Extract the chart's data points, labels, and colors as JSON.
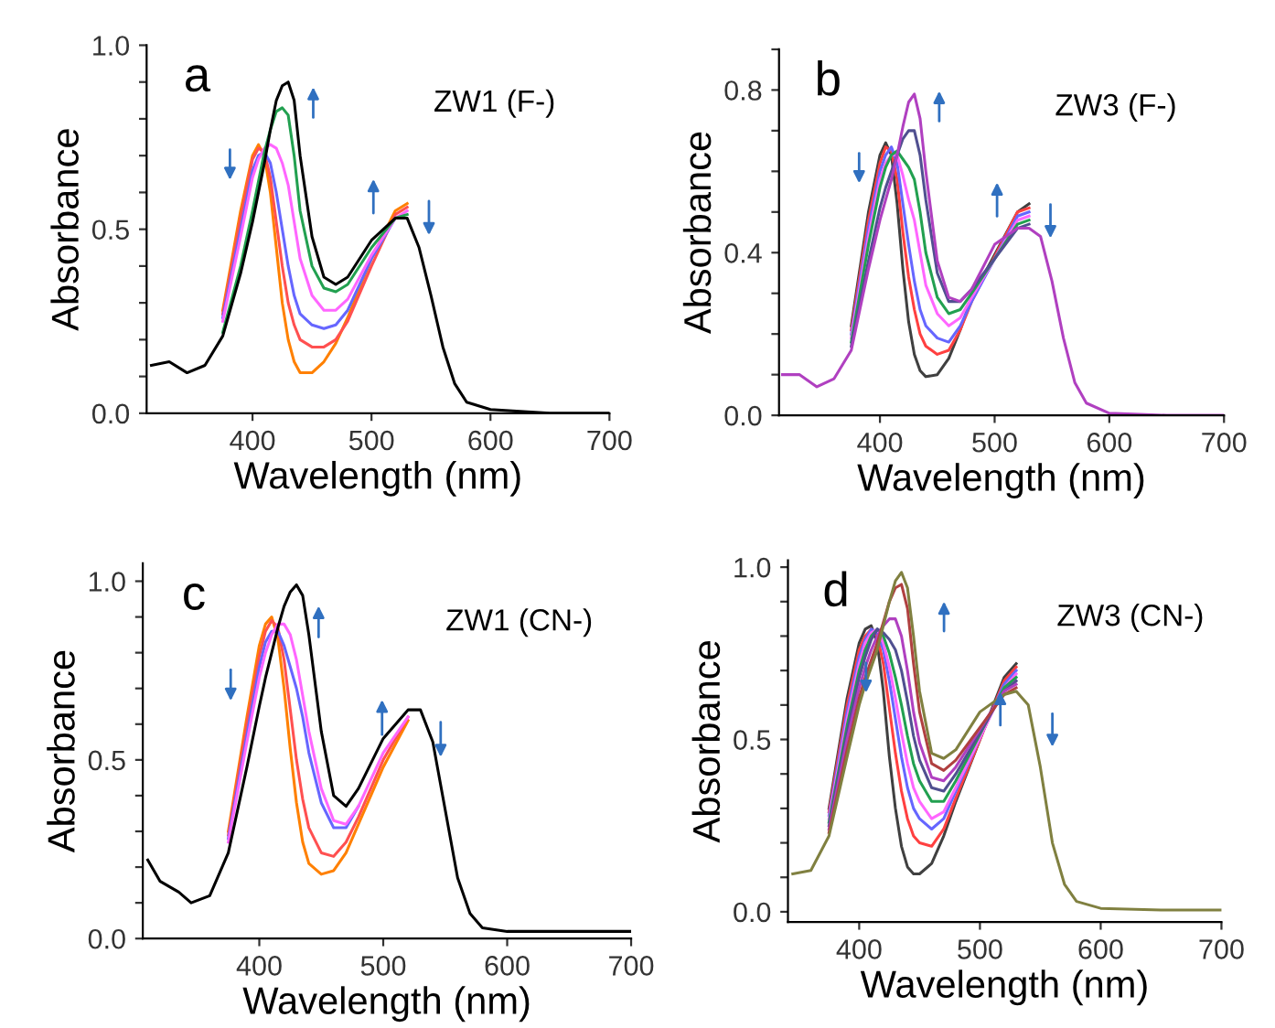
{
  "chart_data": [
    {
      "type": "line",
      "xlabel": "Wavelength (nm)",
      "ylabel": "Absorbance",
      "annotations": [
        "a",
        "ZW1 (F-)"
      ],
      "xlim": [
        311,
        700
      ],
      "ylim": [
        0,
        1.0
      ],
      "xticks": [
        400,
        500,
        600,
        700
      ],
      "yticks": [
        {
          "value": 0,
          "label": "0.0"
        },
        {
          "value": 0.1,
          "label": null
        },
        {
          "value": 0.2,
          "label": null
        },
        {
          "value": 0.3,
          "label": null
        },
        {
          "value": 0.4,
          "label": null
        },
        {
          "value": 0.5,
          "label": "0.5"
        },
        {
          "value": 0.6,
          "label": null
        },
        {
          "value": 0.7,
          "label": null
        },
        {
          "value": 0.8,
          "label": null
        },
        {
          "value": 0.9,
          "label": null
        },
        {
          "value": 1.0,
          "label": "1.0"
        }
      ],
      "x": [
        315,
        330,
        345,
        360,
        375,
        390,
        400,
        405,
        410,
        415,
        420,
        425,
        430,
        435,
        440,
        450,
        460,
        470,
        480,
        500,
        520,
        530,
        540,
        550,
        560,
        570,
        580,
        600,
        650,
        700
      ],
      "series": [
        {
          "color": "#ff8000",
          "x": [
            375,
            390,
            400,
            405,
            410,
            415,
            420,
            425,
            430,
            435,
            440,
            450,
            460,
            470,
            480,
            500,
            520,
            530
          ],
          "values": [
            0.28,
            0.55,
            0.7,
            0.73,
            0.7,
            0.6,
            0.45,
            0.3,
            0.2,
            0.14,
            0.11,
            0.11,
            0.14,
            0.19,
            0.26,
            0.42,
            0.55,
            0.57
          ]
        },
        {
          "color": "#ff5050",
          "x": [
            375,
            390,
            400,
            405,
            410,
            415,
            420,
            425,
            430,
            435,
            440,
            450,
            460,
            470,
            480,
            500,
            520,
            530
          ],
          "values": [
            0.27,
            0.53,
            0.69,
            0.72,
            0.71,
            0.64,
            0.52,
            0.4,
            0.3,
            0.24,
            0.2,
            0.18,
            0.18,
            0.2,
            0.25,
            0.4,
            0.54,
            0.56
          ]
        },
        {
          "color": "#6666ff",
          "x": [
            375,
            390,
            400,
            405,
            410,
            415,
            420,
            425,
            430,
            435,
            440,
            450,
            460,
            470,
            480,
            500,
            520
          ],
          "values": [
            0.26,
            0.5,
            0.66,
            0.7,
            0.71,
            0.68,
            0.6,
            0.5,
            0.4,
            0.32,
            0.27,
            0.24,
            0.23,
            0.24,
            0.28,
            0.42,
            0.53
          ]
        },
        {
          "color": "#ff66ff",
          "x": [
            375,
            390,
            400,
            405,
            410,
            415,
            420,
            425,
            430,
            435,
            440,
            450,
            460,
            470,
            480,
            500,
            520,
            530
          ],
          "values": [
            0.25,
            0.48,
            0.64,
            0.69,
            0.72,
            0.73,
            0.72,
            0.68,
            0.62,
            0.52,
            0.42,
            0.32,
            0.28,
            0.28,
            0.31,
            0.43,
            0.53,
            0.55
          ]
        },
        {
          "color": "#22a050",
          "x": [
            375,
            390,
            400,
            405,
            410,
            415,
            420,
            425,
            430,
            435,
            440,
            450,
            460,
            470,
            480,
            500,
            520,
            530
          ],
          "values": [
            0.22,
            0.4,
            0.55,
            0.63,
            0.71,
            0.77,
            0.82,
            0.83,
            0.81,
            0.7,
            0.55,
            0.4,
            0.34,
            0.33,
            0.35,
            0.45,
            0.53,
            0.54
          ]
        },
        {
          "color": "#000000",
          "values": [
            0.13,
            0.14,
            0.11,
            0.13,
            0.21,
            0.38,
            0.52,
            0.6,
            0.68,
            0.77,
            0.85,
            0.89,
            0.9,
            0.85,
            0.7,
            0.48,
            0.37,
            0.35,
            0.37,
            0.47,
            0.53,
            0.53,
            0.45,
            0.32,
            0.18,
            0.08,
            0.03,
            0.01,
            0,
            0
          ]
        }
      ]
    },
    {
      "type": "line",
      "xlabel": "Wavelength (nm)",
      "ylabel": "Absorbance",
      "annotations": [
        "b",
        "ZW3 (F-)"
      ],
      "xlim": [
        312,
        700
      ],
      "ylim": [
        0,
        0.9
      ],
      "xticks": [
        400,
        500,
        600,
        700
      ],
      "yticks": [
        {
          "value": 0,
          "label": "0.0"
        },
        {
          "value": 0.1,
          "label": null
        },
        {
          "value": 0.2,
          "label": null
        },
        {
          "value": 0.3,
          "label": null
        },
        {
          "value": 0.4,
          "label": "0.4"
        },
        {
          "value": 0.5,
          "label": null
        },
        {
          "value": 0.6,
          "label": null
        },
        {
          "value": 0.7,
          "label": null
        },
        {
          "value": 0.8,
          "label": "0.8"
        },
        {
          "value": 0.9,
          "label": null
        }
      ],
      "x": [
        315,
        330,
        345,
        360,
        375,
        390,
        400,
        405,
        410,
        415,
        420,
        425,
        430,
        435,
        440,
        450,
        460,
        470,
        480,
        500,
        520,
        530,
        540,
        550,
        560,
        570,
        580,
        600,
        650,
        700
      ],
      "series": [
        {
          "color": "#404040",
          "x": [
            375,
            390,
            400,
            405,
            410,
            415,
            420,
            425,
            430,
            435,
            440,
            450,
            460,
            470,
            480,
            520,
            530
          ],
          "values": [
            0.22,
            0.5,
            0.64,
            0.67,
            0.64,
            0.52,
            0.36,
            0.23,
            0.15,
            0.11,
            0.095,
            0.1,
            0.14,
            0.21,
            0.29,
            0.5,
            0.52
          ]
        },
        {
          "color": "#ff4040",
          "x": [
            375,
            390,
            400,
            405,
            410,
            415,
            420,
            425,
            430,
            435,
            440,
            450,
            460,
            470,
            480,
            520,
            530
          ],
          "values": [
            0.21,
            0.48,
            0.62,
            0.66,
            0.65,
            0.58,
            0.45,
            0.34,
            0.26,
            0.2,
            0.17,
            0.15,
            0.16,
            0.21,
            0.28,
            0.5,
            0.51
          ]
        },
        {
          "color": "#6666ff",
          "x": [
            375,
            390,
            400,
            405,
            410,
            415,
            420,
            425,
            430,
            435,
            440,
            450,
            460,
            470,
            480,
            520,
            530
          ],
          "values": [
            0.2,
            0.46,
            0.6,
            0.64,
            0.66,
            0.62,
            0.52,
            0.42,
            0.33,
            0.26,
            0.22,
            0.19,
            0.18,
            0.22,
            0.28,
            0.49,
            0.5
          ]
        },
        {
          "color": "#ff66ff",
          "x": [
            375,
            390,
            400,
            405,
            410,
            415,
            420,
            425,
            430,
            435,
            440,
            450,
            460,
            470,
            480,
            520,
            530
          ],
          "values": [
            0.19,
            0.44,
            0.58,
            0.62,
            0.64,
            0.64,
            0.59,
            0.53,
            0.48,
            0.4,
            0.32,
            0.25,
            0.22,
            0.24,
            0.29,
            0.48,
            0.49
          ]
        },
        {
          "color": "#22a050",
          "x": [
            375,
            390,
            400,
            405,
            410,
            415,
            420,
            425,
            430,
            435,
            440,
            450,
            460,
            470,
            480,
            520,
            530
          ],
          "values": [
            0.18,
            0.42,
            0.56,
            0.61,
            0.64,
            0.65,
            0.63,
            0.61,
            0.58,
            0.5,
            0.4,
            0.29,
            0.25,
            0.26,
            0.3,
            0.47,
            0.48
          ]
        },
        {
          "color": "#505090",
          "x": [
            375,
            390,
            400,
            405,
            410,
            415,
            420,
            425,
            430,
            435,
            440,
            450,
            460,
            470,
            480,
            520,
            530
          ],
          "values": [
            0.17,
            0.38,
            0.51,
            0.56,
            0.6,
            0.64,
            0.68,
            0.7,
            0.7,
            0.64,
            0.53,
            0.35,
            0.28,
            0.28,
            0.31,
            0.46,
            0.47
          ]
        },
        {
          "color": "#b040c0",
          "values": [
            0.1,
            0.1,
            0.07,
            0.09,
            0.16,
            0.36,
            0.48,
            0.53,
            0.58,
            0.64,
            0.71,
            0.77,
            0.79,
            0.73,
            0.6,
            0.38,
            0.29,
            0.28,
            0.31,
            0.42,
            0.46,
            0.46,
            0.44,
            0.33,
            0.19,
            0.08,
            0.03,
            0.005,
            0,
            0
          ]
        }
      ]
    },
    {
      "type": "line",
      "xlabel": "Wavelength (nm)",
      "ylabel": "Absorbance",
      "annotations": [
        "c",
        "ZW1 (CN-)"
      ],
      "xlim": [
        306,
        700
      ],
      "ylim": [
        0,
        1.05
      ],
      "xticks": [
        400,
        500,
        600,
        700
      ],
      "yticks": [
        {
          "value": 0,
          "label": "0.0"
        },
        {
          "value": 0.1,
          "label": null
        },
        {
          "value": 0.2,
          "label": null
        },
        {
          "value": 0.3,
          "label": null
        },
        {
          "value": 0.4,
          "label": null
        },
        {
          "value": 0.5,
          "label": "0.5"
        },
        {
          "value": 0.6,
          "label": null
        },
        {
          "value": 0.7,
          "label": null
        },
        {
          "value": 0.8,
          "label": null
        },
        {
          "value": 0.9,
          "label": null
        },
        {
          "value": 1.0,
          "label": "1.0"
        }
      ],
      "x": [
        310,
        320,
        335,
        345,
        360,
        375,
        390,
        400,
        405,
        410,
        415,
        420,
        425,
        430,
        435,
        440,
        450,
        460,
        470,
        480,
        500,
        520,
        530,
        540,
        550,
        560,
        570,
        580,
        600,
        650,
        700
      ],
      "series": [
        {
          "color": "#ff8000",
          "x": [
            375,
            390,
            400,
            405,
            410,
            415,
            420,
            425,
            430,
            435,
            440,
            450,
            460,
            470,
            480,
            500,
            520
          ],
          "values": [
            0.3,
            0.62,
            0.82,
            0.88,
            0.9,
            0.84,
            0.7,
            0.53,
            0.38,
            0.27,
            0.21,
            0.18,
            0.19,
            0.24,
            0.32,
            0.48,
            0.61
          ]
        },
        {
          "color": "#ff5050",
          "x": [
            375,
            390,
            400,
            405,
            410,
            415,
            420,
            425,
            430,
            435,
            440,
            450,
            460,
            470,
            480,
            500,
            520
          ],
          "values": [
            0.29,
            0.6,
            0.79,
            0.86,
            0.89,
            0.87,
            0.78,
            0.64,
            0.5,
            0.39,
            0.31,
            0.24,
            0.23,
            0.27,
            0.34,
            0.5,
            0.62
          ]
        },
        {
          "color": "#6666ff",
          "x": [
            375,
            390,
            400,
            405,
            410,
            415,
            420,
            425,
            430,
            435,
            440,
            450,
            460,
            470,
            480
          ],
          "values": [
            0.28,
            0.57,
            0.76,
            0.83,
            0.86,
            0.86,
            0.82,
            0.76,
            0.7,
            0.62,
            0.52,
            0.38,
            0.31,
            0.31,
            0.37
          ]
        },
        {
          "color": "#ff66ff",
          "x": [
            375,
            390,
            400,
            405,
            410,
            415,
            420,
            425,
            430,
            435,
            440,
            450,
            460,
            470,
            480,
            500,
            520
          ],
          "values": [
            0.27,
            0.55,
            0.73,
            0.8,
            0.85,
            0.88,
            0.88,
            0.85,
            0.78,
            0.68,
            0.58,
            0.42,
            0.33,
            0.32,
            0.37,
            0.52,
            0.62
          ]
        },
        {
          "color": "#000000",
          "values": [
            0.22,
            0.16,
            0.13,
            0.1,
            0.12,
            0.24,
            0.48,
            0.65,
            0.73,
            0.8,
            0.87,
            0.93,
            0.97,
            0.99,
            0.96,
            0.85,
            0.58,
            0.4,
            0.37,
            0.42,
            0.56,
            0.64,
            0.64,
            0.55,
            0.36,
            0.17,
            0.07,
            0.03,
            0.02,
            0.02,
            0.02
          ]
        }
      ]
    },
    {
      "type": "line",
      "xlabel": "Wavelength (nm)",
      "ylabel": "Absorbance",
      "annotations": [
        "d",
        "ZW3 (CN-)"
      ],
      "xlim": [
        341,
        700
      ],
      "ylim": [
        -0.03,
        1.02
      ],
      "xticks": [
        400,
        500,
        600,
        700
      ],
      "yticks": [
        {
          "value": 0,
          "label": "0.0"
        },
        {
          "value": 0.1,
          "label": null
        },
        {
          "value": 0.2,
          "label": null
        },
        {
          "value": 0.3,
          "label": null
        },
        {
          "value": 0.4,
          "label": null
        },
        {
          "value": 0.5,
          "label": "0.5"
        },
        {
          "value": 0.6,
          "label": null
        },
        {
          "value": 0.7,
          "label": null
        },
        {
          "value": 0.8,
          "label": null
        },
        {
          "value": 0.9,
          "label": null
        },
        {
          "value": 1.0,
          "label": "1.0"
        }
      ],
      "x": [
        345,
        360,
        375,
        390,
        400,
        405,
        410,
        415,
        420,
        425,
        430,
        435,
        440,
        445,
        450,
        460,
        470,
        480,
        500,
        520,
        530,
        540,
        550,
        560,
        570,
        580,
        600,
        650,
        700
      ],
      "series": [
        {
          "color": "#404040",
          "x": [
            375,
            390,
            400,
            405,
            410,
            415,
            420,
            425,
            430,
            435,
            440,
            445,
            450,
            460,
            470,
            480,
            520,
            530
          ],
          "values": [
            0.3,
            0.62,
            0.78,
            0.82,
            0.83,
            0.78,
            0.64,
            0.45,
            0.3,
            0.19,
            0.13,
            0.11,
            0.11,
            0.14,
            0.22,
            0.32,
            0.68,
            0.72
          ]
        },
        {
          "color": "#ff4040",
          "x": [
            375,
            390,
            400,
            405,
            410,
            415,
            420,
            425,
            430,
            435,
            440,
            445,
            450,
            460,
            470,
            480,
            520,
            530
          ],
          "values": [
            0.29,
            0.6,
            0.76,
            0.8,
            0.82,
            0.8,
            0.72,
            0.59,
            0.46,
            0.35,
            0.27,
            0.22,
            0.2,
            0.19,
            0.24,
            0.33,
            0.67,
            0.71
          ]
        },
        {
          "color": "#6666ff",
          "x": [
            375,
            390,
            400,
            405,
            410,
            415,
            420,
            425,
            430,
            435,
            440,
            445,
            450,
            460,
            470,
            480,
            520,
            530
          ],
          "values": [
            0.28,
            0.58,
            0.74,
            0.79,
            0.82,
            0.81,
            0.76,
            0.67,
            0.56,
            0.45,
            0.36,
            0.3,
            0.27,
            0.24,
            0.27,
            0.35,
            0.66,
            0.7
          ]
        },
        {
          "color": "#ff66ff",
          "x": [
            375,
            390,
            400,
            405,
            410,
            415,
            420,
            425,
            430,
            435,
            440,
            445,
            450,
            460,
            470,
            480,
            520,
            530
          ],
          "values": [
            0.27,
            0.56,
            0.72,
            0.78,
            0.81,
            0.82,
            0.78,
            0.71,
            0.62,
            0.52,
            0.43,
            0.36,
            0.32,
            0.27,
            0.29,
            0.36,
            0.65,
            0.69
          ]
        },
        {
          "color": "#22a050",
          "x": [
            375,
            390,
            400,
            405,
            410,
            415,
            420,
            425,
            430,
            435,
            440,
            445,
            450,
            460,
            470,
            480,
            520,
            530
          ],
          "values": [
            0.26,
            0.54,
            0.7,
            0.76,
            0.8,
            0.82,
            0.8,
            0.75,
            0.68,
            0.6,
            0.51,
            0.43,
            0.38,
            0.32,
            0.32,
            0.38,
            0.65,
            0.68
          ]
        },
        {
          "color": "#505090",
          "x": [
            375,
            390,
            400,
            405,
            410,
            415,
            420,
            425,
            430,
            435,
            440,
            445,
            450,
            460,
            470,
            480,
            520,
            530
          ],
          "values": [
            0.25,
            0.52,
            0.68,
            0.74,
            0.79,
            0.82,
            0.81,
            0.79,
            0.76,
            0.7,
            0.61,
            0.51,
            0.44,
            0.36,
            0.35,
            0.4,
            0.64,
            0.67
          ]
        },
        {
          "color": "#b040c0",
          "x": [
            375,
            390,
            400,
            405,
            410,
            415,
            420,
            425,
            430,
            435,
            440,
            445,
            450,
            460,
            470,
            480,
            520,
            530
          ],
          "values": [
            0.24,
            0.5,
            0.65,
            0.71,
            0.76,
            0.8,
            0.83,
            0.85,
            0.85,
            0.8,
            0.7,
            0.58,
            0.49,
            0.39,
            0.38,
            0.42,
            0.64,
            0.66
          ]
        },
        {
          "color": "#b04040",
          "x": [
            375,
            390,
            400,
            405,
            410,
            415,
            420,
            425,
            430,
            435,
            440,
            445,
            450,
            460,
            470,
            480,
            520,
            530
          ],
          "values": [
            0.23,
            0.47,
            0.62,
            0.68,
            0.73,
            0.78,
            0.84,
            0.9,
            0.94,
            0.95,
            0.88,
            0.72,
            0.58,
            0.43,
            0.41,
            0.44,
            0.63,
            0.65
          ]
        },
        {
          "color": "#808040",
          "values": [
            0.11,
            0.12,
            0.22,
            0.45,
            0.6,
            0.66,
            0.71,
            0.76,
            0.83,
            0.9,
            0.96,
            0.985,
            0.94,
            0.8,
            0.64,
            0.46,
            0.445,
            0.47,
            0.58,
            0.63,
            0.64,
            0.6,
            0.42,
            0.2,
            0.08,
            0.03,
            0.01,
            0.005,
            0.005
          ]
        }
      ]
    }
  ]
}
